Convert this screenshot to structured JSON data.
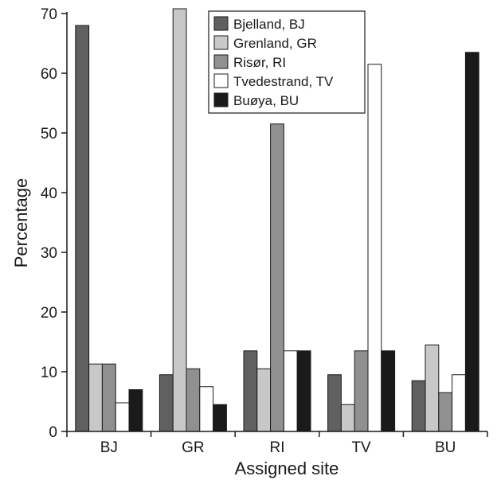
{
  "chart_data": {
    "type": "bar",
    "title": "",
    "xlabel": "Assigned site",
    "ylabel": "Percentage",
    "ylim": [
      0,
      70
    ],
    "yticks": [
      0,
      10,
      20,
      30,
      40,
      50,
      60,
      70
    ],
    "grid": false,
    "legend_position": "top-center",
    "categories": [
      "BJ",
      "GR",
      "RI",
      "TV",
      "BU"
    ],
    "series": [
      {
        "name": "Bjelland, BJ",
        "color": "#606060",
        "values": [
          68,
          9.5,
          13.5,
          9.5,
          8.5
        ]
      },
      {
        "name": "Grenland, GR",
        "color": "#c8c8c8",
        "values": [
          11.3,
          70.8,
          10.5,
          4.5,
          14.5
        ]
      },
      {
        "name": "Risør, RI",
        "color": "#909090",
        "values": [
          11.3,
          10.5,
          51.5,
          13.5,
          6.5
        ]
      },
      {
        "name": "Tvedestrand, TV",
        "color": "#ffffff",
        "values": [
          4.8,
          7.5,
          13.5,
          61.5,
          9.5
        ]
      },
      {
        "name": "Buøya, BU",
        "color": "#1a1a1a",
        "values": [
          7,
          4.5,
          13.5,
          13.5,
          63.5
        ]
      }
    ]
  }
}
